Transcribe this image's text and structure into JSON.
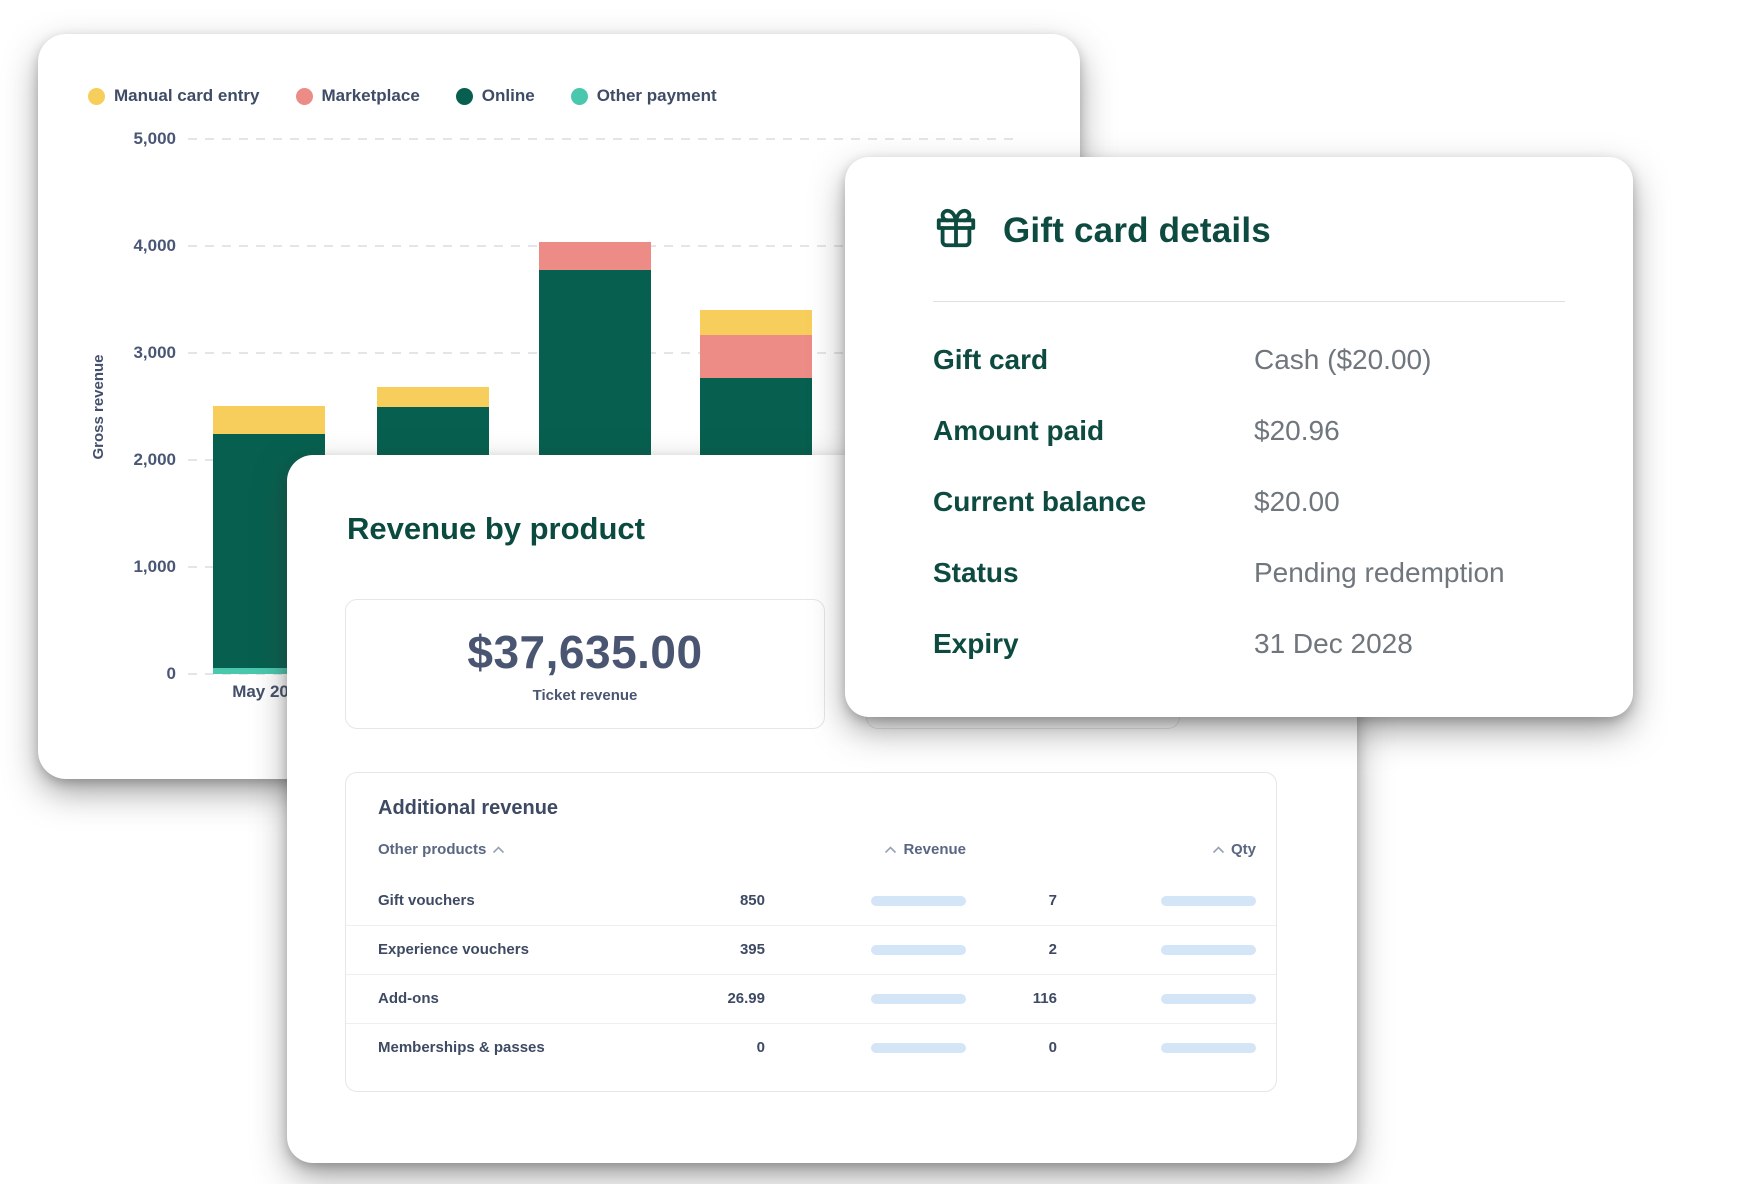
{
  "colors": {
    "accent_green": "#0D4A3F",
    "slate_text": "#414E68",
    "value_gray": "#6F767D",
    "table_bar_fill": "#5A9ADF",
    "table_bar_track": "#D4E5F7"
  },
  "chart_card": {
    "legend": [
      {
        "label": "Manual card entry",
        "color": "#F7CE5B"
      },
      {
        "label": "Marketplace",
        "color": "#ED8C86"
      },
      {
        "label": "Online",
        "color": "#07604F"
      },
      {
        "label": "Other payment",
        "color": "#4AC8AE"
      }
    ],
    "chart_data": {
      "type": "bar",
      "stacked": true,
      "ylabel": "Gross revenue",
      "ylim": [
        0,
        5000
      ],
      "grid": "dashed-horizontal",
      "legend_position": "top-left",
      "yticks": [
        {
          "value": 0,
          "label": "0"
        },
        {
          "value": 1000,
          "label": "1,000"
        },
        {
          "value": 2000,
          "label": "2,000"
        },
        {
          "value": 3000,
          "label": "3,000"
        },
        {
          "value": 4000,
          "label": "4,000"
        },
        {
          "value": 5000,
          "label": "5,000"
        }
      ],
      "categories": [
        "May 2024",
        "",
        "",
        ""
      ],
      "series": [
        {
          "name": "Other payment",
          "color": "#4AC8AE",
          "values": [
            55,
            0,
            0,
            0
          ]
        },
        {
          "name": "Online",
          "color": "#07604F",
          "values": [
            2190,
            2495,
            3780,
            2770
          ]
        },
        {
          "name": "Marketplace",
          "color": "#ED8C86",
          "values": [
            0,
            0,
            260,
            395
          ]
        },
        {
          "name": "Manual card entry",
          "color": "#F7CE5B",
          "values": [
            260,
            190,
            0,
            235
          ]
        }
      ],
      "totals_approx": [
        2505,
        2685,
        4040,
        3400
      ]
    }
  },
  "gift_card": {
    "title": "Gift card details",
    "rows": [
      {
        "label": "Gift card",
        "value": "Cash ($20.00)"
      },
      {
        "label": "Amount paid",
        "value": "$20.96"
      },
      {
        "label": "Current balance",
        "value": "$20.00"
      },
      {
        "label": "Status",
        "value": "Pending redemption"
      },
      {
        "label": "Expiry",
        "value": "31 Dec 2028"
      }
    ]
  },
  "revenue_card": {
    "title": "Revenue by product",
    "stat": {
      "value": "$37,635.00",
      "label": "Ticket revenue"
    },
    "table": {
      "title": "Additional revenue",
      "columns": {
        "products": "Other products",
        "revenue": "Revenue",
        "qty": "Qty"
      },
      "rows": [
        {
          "name": "Gift vouchers",
          "revenue": "850",
          "revenue_fill": 1,
          "qty": "7",
          "qty_fill": 0.07
        },
        {
          "name": "Experience vouchers",
          "revenue": "395",
          "revenue_fill": 0.46,
          "qty": "2",
          "qty_fill": 0.03
        },
        {
          "name": "Add-ons",
          "revenue": "26.99",
          "revenue_fill": 0.04,
          "qty": "116",
          "qty_fill": 1
        },
        {
          "name": "Memberships & passes",
          "revenue": "0",
          "revenue_fill": 0,
          "qty": "0",
          "qty_fill": 0
        }
      ]
    }
  }
}
